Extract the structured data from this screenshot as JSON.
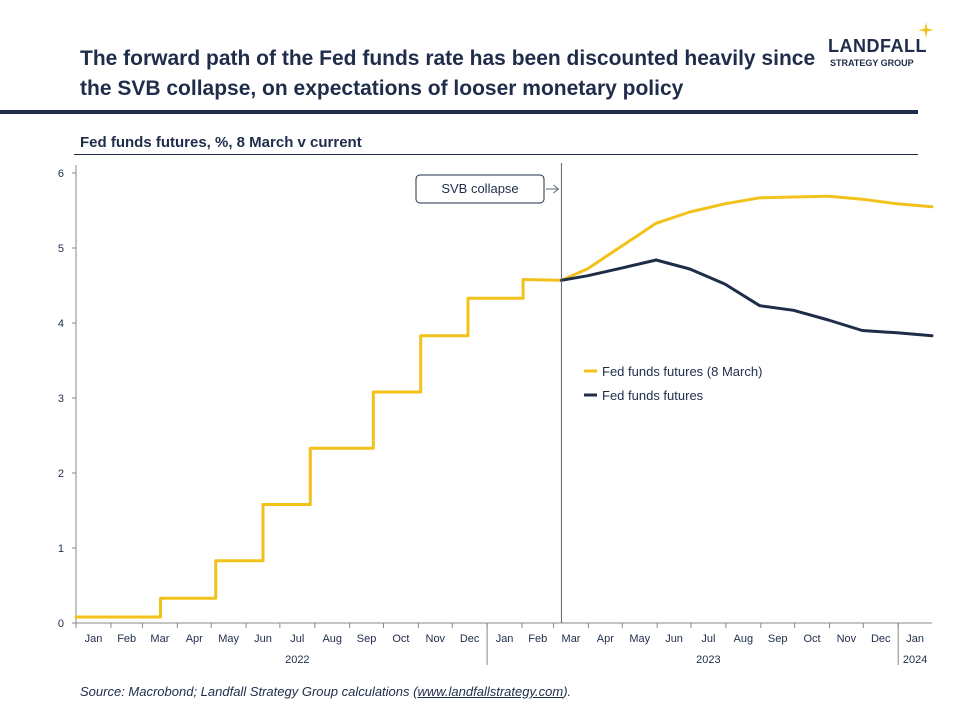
{
  "header": {
    "title": "The forward path of the Fed funds rate has been discounted heavily since the SVB collapse, on expectations of looser monetary policy"
  },
  "logo": {
    "word": "LANDFALL",
    "tagline": "STRATEGY GROUP"
  },
  "colors": {
    "navy": "#1f2d4a",
    "gold": "#f2c21b",
    "axis": "#888888"
  },
  "footer": {
    "source_prefix": "Source: Macrobond; Landfall Strategy Group calculations (",
    "source_link": "www.landfallstrategy.com",
    "source_suffix": ")."
  },
  "chart_data": {
    "type": "line",
    "title": "Fed funds futures, %, 8 March v current",
    "ylim": [
      0,
      6
    ],
    "yticks": [
      "0",
      "1",
      "2",
      "3",
      "4",
      "5",
      "6"
    ],
    "grid": false,
    "legend_position": "center-right",
    "x_start": "2022-01-01",
    "x_end": "2024-01-31",
    "month_ticks": [
      "Jan",
      "Feb",
      "Mar",
      "Apr",
      "May",
      "Jun",
      "Jul",
      "Aug",
      "Sep",
      "Oct",
      "Nov",
      "Dec",
      "Jan",
      "Feb",
      "Mar",
      "Apr",
      "May",
      "Jun",
      "Jul",
      "Aug",
      "Sep",
      "Oct",
      "Nov",
      "Dec",
      "Jan"
    ],
    "year_labels": [
      {
        "label": "2022",
        "month": "2022-07"
      },
      {
        "label": "2023",
        "month": "2023-07"
      },
      {
        "label": "2024",
        "month": "2024-01"
      }
    ],
    "annotation": {
      "text": "SVB collapse",
      "date": "2023-03-08"
    },
    "series": [
      {
        "name": "Fed funds futures (8 March)",
        "color": "#f2c21b",
        "step": true,
        "points": [
          [
            "2022-01-01",
            0.08
          ],
          [
            "2022-03-16",
            0.08
          ],
          [
            "2022-03-17",
            0.33
          ],
          [
            "2022-05-04",
            0.33
          ],
          [
            "2022-05-05",
            0.83
          ],
          [
            "2022-06-15",
            0.83
          ],
          [
            "2022-06-16",
            1.58
          ],
          [
            "2022-07-27",
            1.58
          ],
          [
            "2022-07-28",
            2.33
          ],
          [
            "2022-09-21",
            2.33
          ],
          [
            "2022-09-22",
            3.08
          ],
          [
            "2022-11-02",
            3.08
          ],
          [
            "2022-11-03",
            3.83
          ],
          [
            "2022-12-14",
            3.83
          ],
          [
            "2022-12-15",
            4.33
          ],
          [
            "2023-02-01",
            4.33
          ],
          [
            "2023-02-02",
            4.58
          ],
          [
            "2023-03-08",
            4.57
          ],
          [
            "2023-03-31",
            4.72
          ],
          [
            "2023-04-30",
            5.02
          ],
          [
            "2023-05-31",
            5.33
          ],
          [
            "2023-06-30",
            5.48
          ],
          [
            "2023-07-31",
            5.59
          ],
          [
            "2023-08-31",
            5.67
          ],
          [
            "2023-09-30",
            5.68
          ],
          [
            "2023-10-31",
            5.69
          ],
          [
            "2023-11-30",
            5.65
          ],
          [
            "2023-12-31",
            5.59
          ],
          [
            "2024-01-31",
            5.55
          ]
        ]
      },
      {
        "name": "Fed funds futures",
        "color": "#1f2d4a",
        "step": false,
        "points": [
          [
            "2023-03-08",
            4.57
          ],
          [
            "2023-03-31",
            4.63
          ],
          [
            "2023-04-30",
            4.73
          ],
          [
            "2023-05-31",
            4.84
          ],
          [
            "2023-06-30",
            4.72
          ],
          [
            "2023-07-31",
            4.52
          ],
          [
            "2023-08-31",
            4.23
          ],
          [
            "2023-09-30",
            4.17
          ],
          [
            "2023-10-31",
            4.04
          ],
          [
            "2023-11-30",
            3.9
          ],
          [
            "2023-12-31",
            3.87
          ],
          [
            "2024-01-31",
            3.83
          ]
        ]
      }
    ]
  }
}
